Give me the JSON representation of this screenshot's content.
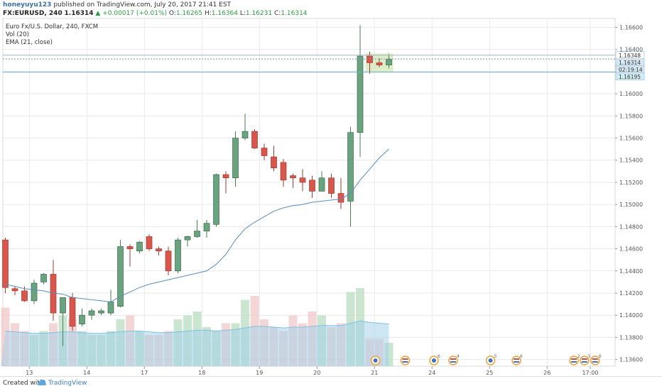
{
  "header": {
    "user": "honeyuyu123",
    "published": "published on TradingView.com, July 20, 2017 21:41 EST",
    "symbol": "FX:EURUSD, 240",
    "close": "1.16314",
    "arrow": "▲",
    "change": "+0.00017 (+0.01%)",
    "o_label": "O:",
    "o_val": "1.16265",
    "h_label": "H:",
    "h_val": "1.16364",
    "l_label": "L:",
    "l_val": "1.16231",
    "c_label": "C:",
    "c_val": "1.16314"
  },
  "legend": {
    "title": "Euro Fx/U.S. Dollar, 240, FXCM",
    "vol": "Vol (20)",
    "ema": "EMA (21, close)"
  },
  "price_tags": [
    "1.16348",
    "1.16314",
    "02:19:14",
    "1.16195"
  ],
  "footer": {
    "created": "Created with",
    "brand": "TradingView"
  },
  "colors": {
    "up": "#6aa37f",
    "down": "#d8574c",
    "ema": "#5b8db8",
    "grid": "#eaeaea",
    "vol_up": "#b8dcc0",
    "vol_down": "#f0c8c8",
    "vol_ma": "#9fd0ea"
  },
  "chart_data": {
    "type": "candlestick",
    "ylim": [
      1.1354,
      1.1668
    ],
    "y_ticks": [
      1.136,
      1.138,
      1.14,
      1.142,
      1.144,
      1.146,
      1.148,
      1.15,
      1.152,
      1.154,
      1.156,
      1.158,
      1.16,
      1.162,
      1.164,
      1.166
    ],
    "x_ticks": [
      {
        "label": "13",
        "t": 2.5
      },
      {
        "label": "14",
        "t": 8.5
      },
      {
        "label": "17",
        "t": 14.5
      },
      {
        "label": "18",
        "t": 20.5
      },
      {
        "label": "19",
        "t": 26.5
      },
      {
        "label": "20",
        "t": 32.5
      },
      {
        "label": "21",
        "t": 38.5
      },
      {
        "label": "24",
        "t": 44.5
      },
      {
        "label": "25",
        "t": 50.5
      },
      {
        "label": "26",
        "t": 56.5
      },
      {
        "label": "17:00",
        "t": 61
      }
    ],
    "candles": [
      {
        "o": 1.1468,
        "h": 1.147,
        "l": 1.142,
        "c": 1.1425
      },
      {
        "o": 1.1424,
        "h": 1.1426,
        "l": 1.1418,
        "c": 1.1422
      },
      {
        "o": 1.1422,
        "h": 1.1426,
        "l": 1.1412,
        "c": 1.1413
      },
      {
        "o": 1.1413,
        "h": 1.1432,
        "l": 1.141,
        "c": 1.1429
      },
      {
        "o": 1.143,
        "h": 1.1438,
        "l": 1.1428,
        "c": 1.1437
      },
      {
        "o": 1.1437,
        "h": 1.145,
        "l": 1.1395,
        "c": 1.1402
      },
      {
        "o": 1.1402,
        "h": 1.1416,
        "l": 1.1372,
        "c": 1.1416
      },
      {
        "o": 1.1416,
        "h": 1.142,
        "l": 1.1386,
        "c": 1.139
      },
      {
        "o": 1.1392,
        "h": 1.1406,
        "l": 1.139,
        "c": 1.14
      },
      {
        "o": 1.14,
        "h": 1.1406,
        "l": 1.1396,
        "c": 1.1404
      },
      {
        "o": 1.1402,
        "h": 1.1406,
        "l": 1.14,
        "c": 1.1404
      },
      {
        "o": 1.1402,
        "h": 1.1423,
        "l": 1.14,
        "c": 1.1412
      },
      {
        "o": 1.1408,
        "h": 1.1468,
        "l": 1.1407,
        "c": 1.1462
      },
      {
        "o": 1.1462,
        "h": 1.1464,
        "l": 1.1444,
        "c": 1.146
      },
      {
        "o": 1.1458,
        "h": 1.1467,
        "l": 1.1456,
        "c": 1.1466
      },
      {
        "o": 1.1471,
        "h": 1.1473,
        "l": 1.1458,
        "c": 1.146
      },
      {
        "o": 1.146,
        "h": 1.1462,
        "l": 1.1454,
        "c": 1.1458
      },
      {
        "o": 1.1458,
        "h": 1.1462,
        "l": 1.1436,
        "c": 1.144
      },
      {
        "o": 1.144,
        "h": 1.147,
        "l": 1.1438,
        "c": 1.1468
      },
      {
        "o": 1.1468,
        "h": 1.1472,
        "l": 1.1462,
        "c": 1.1471
      },
      {
        "o": 1.1471,
        "h": 1.1486,
        "l": 1.147,
        "c": 1.1476
      },
      {
        "o": 1.1476,
        "h": 1.1486,
        "l": 1.147,
        "c": 1.1483
      },
      {
        "o": 1.1482,
        "h": 1.1528,
        "l": 1.148,
        "c": 1.1527
      },
      {
        "o": 1.1527,
        "h": 1.153,
        "l": 1.151,
        "c": 1.1524
      },
      {
        "o": 1.1524,
        "h": 1.1566,
        "l": 1.1516,
        "c": 1.156
      },
      {
        "o": 1.156,
        "h": 1.1582,
        "l": 1.1558,
        "c": 1.1566
      },
      {
        "o": 1.1566,
        "h": 1.1568,
        "l": 1.155,
        "c": 1.1551
      },
      {
        "o": 1.1551,
        "h": 1.1555,
        "l": 1.154,
        "c": 1.1544
      },
      {
        "o": 1.1543,
        "h": 1.1553,
        "l": 1.153,
        "c": 1.1533
      },
      {
        "o": 1.1538,
        "h": 1.1541,
        "l": 1.1516,
        "c": 1.1522
      },
      {
        "o": 1.1526,
        "h": 1.1528,
        "l": 1.1515,
        "c": 1.1524
      },
      {
        "o": 1.1524,
        "h": 1.1532,
        "l": 1.1512,
        "c": 1.152
      },
      {
        "o": 1.1522,
        "h": 1.1526,
        "l": 1.1506,
        "c": 1.1512
      },
      {
        "o": 1.1512,
        "h": 1.153,
        "l": 1.1512,
        "c": 1.1524
      },
      {
        "o": 1.1524,
        "h": 1.1528,
        "l": 1.1506,
        "c": 1.151
      },
      {
        "o": 1.151,
        "h": 1.1524,
        "l": 1.1496,
        "c": 1.1502
      },
      {
        "o": 1.1503,
        "h": 1.157,
        "l": 1.148,
        "c": 1.1565
      },
      {
        "o": 1.1565,
        "h": 1.1662,
        "l": 1.1543,
        "c": 1.1634
      },
      {
        "o": 1.1634,
        "h": 1.1638,
        "l": 1.1618,
        "c": 1.1628
      },
      {
        "o": 1.1628,
        "h": 1.1632,
        "l": 1.1624,
        "c": 1.1626
      },
      {
        "o": 1.1626,
        "h": 1.1636,
        "l": 1.1623,
        "c": 1.1631
      }
    ],
    "ema_start": 0,
    "ema": [
      1.1428,
      1.1426,
      1.1424,
      1.1423,
      1.1422,
      1.142,
      1.1419,
      1.1416,
      1.1415,
      1.1414,
      1.1413,
      1.1412,
      1.1417,
      1.1421,
      1.1425,
      1.1428,
      1.143,
      1.1432,
      1.1434,
      1.1436,
      1.1438,
      1.144,
      1.1446,
      1.1455,
      1.1468,
      1.1478,
      1.1484,
      1.1489,
      1.1494,
      1.1497,
      1.1499,
      1.15,
      1.1502,
      1.1503,
      1.1504,
      1.1505,
      1.151,
      1.1522,
      1.1532,
      1.1542,
      1.155
    ],
    "volume": [
      0.75,
      0.55,
      0.45,
      0.4,
      0.45,
      0.55,
      0.65,
      0.6,
      0.45,
      0.4,
      0.4,
      0.45,
      0.6,
      0.65,
      0.45,
      0.4,
      0.4,
      0.45,
      0.6,
      0.65,
      0.7,
      0.5,
      0.45,
      0.55,
      0.55,
      0.85,
      0.9,
      0.6,
      0.5,
      0.45,
      0.65,
      0.55,
      0.7,
      0.65,
      0.5,
      0.55,
      0.95,
      1.0,
      0.35,
      0.35,
      0.3
    ],
    "vol_ma": [
      0.45,
      0.44,
      0.43,
      0.42,
      0.42,
      0.43,
      0.44,
      0.44,
      0.43,
      0.42,
      0.42,
      0.43,
      0.44,
      0.45,
      0.45,
      0.44,
      0.43,
      0.43,
      0.44,
      0.45,
      0.46,
      0.46,
      0.45,
      0.46,
      0.47,
      0.49,
      0.51,
      0.51,
      0.5,
      0.49,
      0.5,
      0.5,
      0.51,
      0.52,
      0.52,
      0.52,
      0.55,
      0.58,
      0.56,
      0.55,
      0.54
    ],
    "events": [
      {
        "t": 38.6,
        "kind": "earn",
        "label": ""
      },
      {
        "t": 41.7,
        "kind": "flag",
        "label": ""
      },
      {
        "t": 44.7,
        "kind": "earn",
        "label": "6"
      },
      {
        "t": 46.7,
        "kind": "flag",
        "label": "4"
      },
      {
        "t": 50.6,
        "kind": "earn",
        "label": "5"
      },
      {
        "t": 53.3,
        "kind": "flag",
        "label": "6"
      },
      {
        "t": 59.3,
        "kind": "flag",
        "label": "2"
      },
      {
        "t": 60.4,
        "kind": "flag",
        "label": "5"
      },
      {
        "t": 61.5,
        "kind": "flag",
        "label": "6"
      }
    ]
  }
}
